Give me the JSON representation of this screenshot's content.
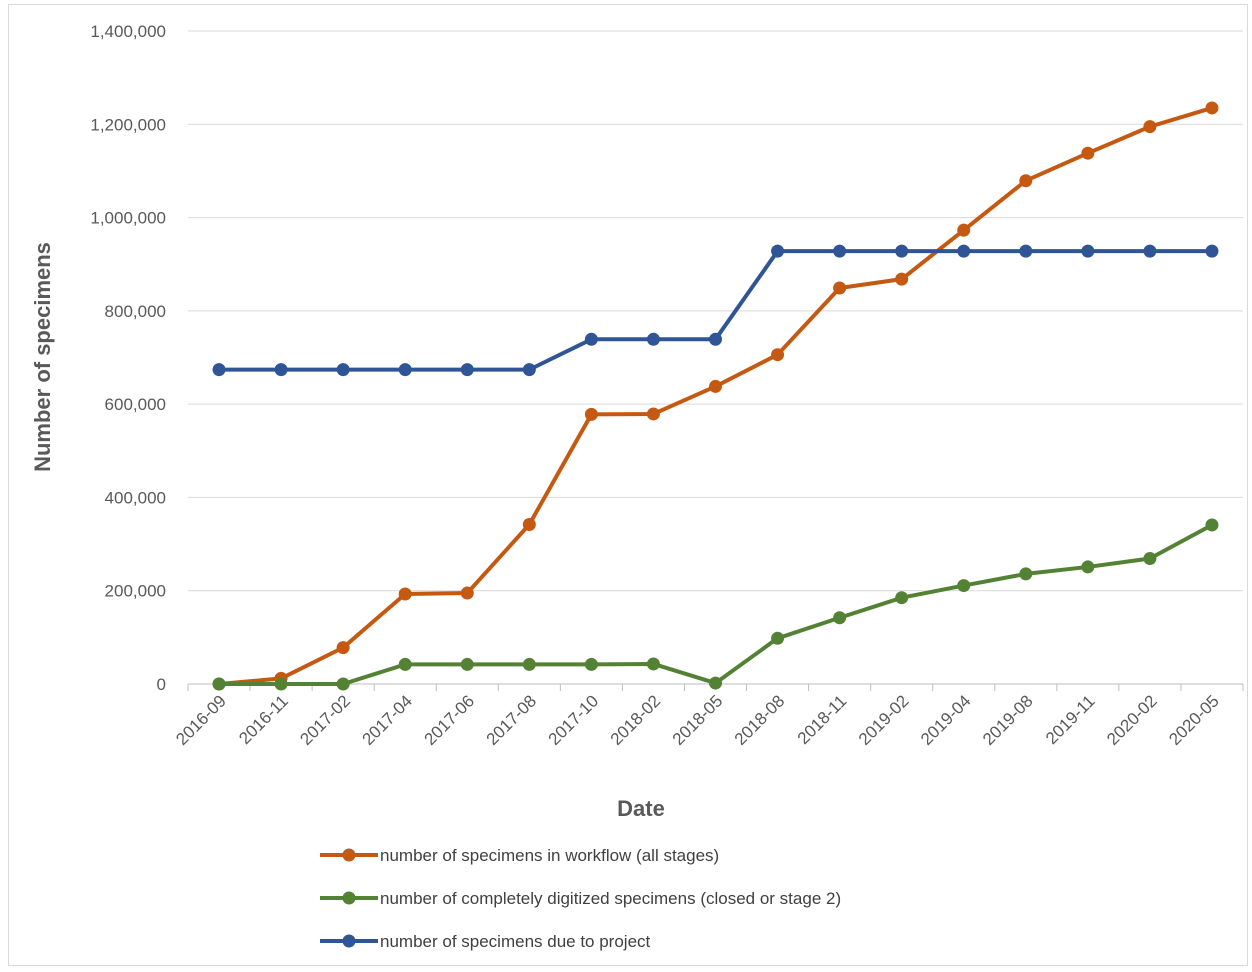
{
  "chart_data": {
    "type": "line",
    "title": "",
    "xlabel": "Date",
    "ylabel": "Number of specimens",
    "categories": [
      "2016-09",
      "2016-11",
      "2017-02",
      "2017-04",
      "2017-06",
      "2017-08",
      "2017-10",
      "2018-02",
      "2018-05",
      "2018-08",
      "2018-11",
      "2019-02",
      "2019-04",
      "2019-08",
      "2019-11",
      "2020-02",
      "2020-05"
    ],
    "ylim": [
      0,
      1400000
    ],
    "yticks": [
      0,
      200000,
      400000,
      600000,
      800000,
      1000000,
      1200000,
      1400000
    ],
    "ytick_labels": [
      "0",
      "200,000",
      "400,000",
      "600,000",
      "800,000",
      "1,000,000",
      "1,200,000",
      "1,400,000"
    ],
    "grid": true,
    "legend_position": "bottom",
    "series": [
      {
        "name": "number of specimens in workflow (all stages)",
        "color": "#c65911",
        "values": [
          0,
          12000,
          78000,
          193000,
          195000,
          342000,
          578000,
          579000,
          638000,
          706000,
          849000,
          868000,
          973000,
          1079000,
          1138000,
          1195000,
          1235000
        ]
      },
      {
        "name": "number of completely digitized specimens (closed or stage 2)",
        "color": "#548235",
        "values": [
          0,
          0,
          0,
          42000,
          42000,
          42000,
          42000,
          43000,
          2000,
          98000,
          142000,
          185000,
          211000,
          236000,
          251000,
          269000,
          341000
        ]
      },
      {
        "name": "number of specimens due to project",
        "color": "#2f5597",
        "values": [
          674000,
          674000,
          674000,
          674000,
          674000,
          674000,
          739000,
          739000,
          739000,
          928000,
          928000,
          928000,
          928000,
          928000,
          928000,
          928000,
          928000
        ]
      }
    ]
  }
}
